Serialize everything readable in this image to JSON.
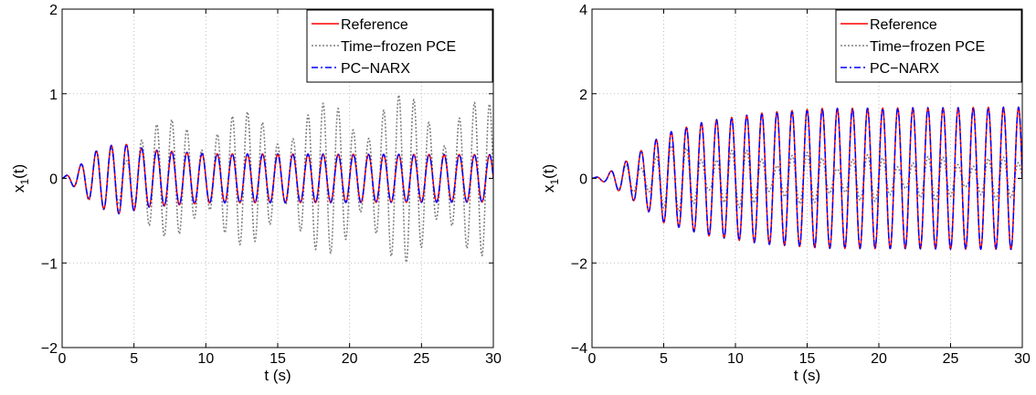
{
  "chart_data": [
    {
      "type": "line",
      "xlabel": "t (s)",
      "ylabel": "x",
      "ylabel_sub": "1",
      "ylabel_suffix": "(t)",
      "xlim": [
        0,
        30
      ],
      "ylim": [
        -2,
        2
      ],
      "xticks": [
        0,
        5,
        10,
        15,
        20,
        25,
        30
      ],
      "yticks": [
        -2,
        -1,
        0,
        1,
        2
      ],
      "grid": true,
      "legend_position": "top-right",
      "series": [
        {
          "name": "Reference",
          "color": "#ff0000",
          "style": "solid",
          "frequency_hz": 0.95,
          "envelope": {
            "t": [
              0,
              1,
              2.5,
              4,
              6,
              10,
              30
            ],
            "amp": [
              0,
              0.12,
              0.34,
              0.42,
              0.34,
              0.29,
              0.28
            ]
          }
        },
        {
          "name": "Time−frozen PCE",
          "color": "#808080",
          "style": "dotted",
          "frequency_hz": 0.95,
          "envelope": {
            "t": [
              0,
              1,
              3,
              4,
              5.5,
              8,
              10.5,
              15,
              20,
              24,
              30
            ],
            "amp": [
              0,
              0.12,
              0.45,
              0.55,
              0.62,
              0.72,
              0.8,
              0.78,
              0.95,
              1.0,
              0.9
            ]
          },
          "beat_period_s": 5.5
        },
        {
          "name": "PC−NARX",
          "color": "#0000ff",
          "style": "dashdot",
          "frequency_hz": 0.95,
          "envelope": {
            "t": [
              0,
              1,
              2.5,
              4,
              6,
              10,
              30
            ],
            "amp": [
              0,
              0.12,
              0.34,
              0.42,
              0.34,
              0.29,
              0.28
            ]
          }
        }
      ]
    },
    {
      "type": "line",
      "xlabel": "t (s)",
      "ylabel": "x",
      "ylabel_sub": "1",
      "ylabel_suffix": "(t)",
      "xlim": [
        0,
        30
      ],
      "ylim": [
        -4,
        4
      ],
      "xticks": [
        0,
        5,
        10,
        15,
        20,
        25,
        30
      ],
      "yticks": [
        -4,
        -2,
        0,
        2,
        4
      ],
      "grid": true,
      "legend_position": "top-right",
      "series": [
        {
          "name": "Reference",
          "color": "#ff0000",
          "style": "solid",
          "frequency_hz": 0.95,
          "envelope": {
            "t": [
              0,
              1,
              3,
              5,
              8,
              12,
              16,
              30
            ],
            "amp": [
              0,
              0.1,
              0.55,
              1.05,
              1.35,
              1.55,
              1.65,
              1.68
            ]
          }
        },
        {
          "name": "Time−frozen PCE",
          "color": "#808080",
          "style": "dotted",
          "frequency_hz": 0.95,
          "envelope": {
            "t": [
              0,
              1,
              3,
              5,
              8,
              12,
              20,
              30
            ],
            "amp": [
              0,
              0.1,
              0.5,
              0.8,
              0.75,
              0.65,
              0.55,
              0.5
            ]
          },
          "beat_period_s": 4.5
        },
        {
          "name": "PC−NARX",
          "color": "#0000ff",
          "style": "dashdot",
          "frequency_hz": 0.95,
          "envelope": {
            "t": [
              0,
              1,
              3,
              5,
              8,
              12,
              16,
              30
            ],
            "amp": [
              0,
              0.1,
              0.55,
              1.05,
              1.35,
              1.55,
              1.65,
              1.68
            ]
          }
        }
      ]
    }
  ]
}
